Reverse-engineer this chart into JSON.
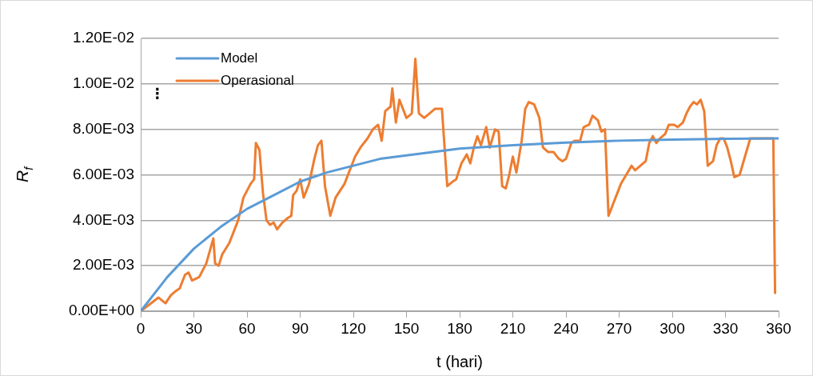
{
  "chart_data": {
    "type": "line",
    "xlabel": "t (hari)",
    "ylabel": "R$_{f}$",
    "xlim": [
      0,
      360
    ],
    "xticks": [
      0,
      30,
      60,
      90,
      120,
      150,
      180,
      210,
      240,
      270,
      300,
      330,
      360
    ],
    "ylim": [
      0,
      0.012
    ],
    "yticks": [
      {
        "value": 0,
        "label": "0.00E+00"
      },
      {
        "value": 0.002,
        "label": "2.00E-03"
      },
      {
        "value": 0.004,
        "label": "4.00E-03"
      },
      {
        "value": 0.006,
        "label": "6.00E-03"
      },
      {
        "value": 0.008,
        "label": "8.00E-03"
      },
      {
        "value": 0.01,
        "label": "1.00E-02"
      },
      {
        "value": 0.012,
        "label": "1.20E-02"
      }
    ],
    "grid": "y",
    "legend": "top left",
    "marker": "none",
    "line_style": "solid",
    "annotations": [
      "⋮"
    ],
    "series": [
      {
        "name": "Model",
        "color": "#5b9bd5",
        "x": [
          0,
          15,
          30,
          45,
          60,
          75,
          90,
          105,
          120,
          135,
          150,
          165,
          180,
          210,
          240,
          270,
          300,
          330,
          360
        ],
        "values": [
          0,
          0.0015,
          0.00275,
          0.0037,
          0.0045,
          0.0051,
          0.0057,
          0.0061,
          0.0064,
          0.0067,
          0.00685,
          0.007,
          0.00715,
          0.0073,
          0.00742,
          0.0075,
          0.00755,
          0.00758,
          0.0076
        ]
      },
      {
        "name": "Operasional",
        "color": "#ed7d31",
        "x": [
          0,
          5,
          10,
          14,
          17,
          20,
          22,
          25,
          27,
          29,
          33,
          37,
          41,
          42,
          44,
          46,
          50,
          55,
          58,
          62,
          64,
          65,
          67,
          69,
          71,
          73,
          75,
          77,
          80,
          83,
          85,
          86,
          88,
          90,
          92,
          95,
          98,
          100,
          102,
          104,
          107,
          110,
          115,
          118,
          121,
          124,
          128,
          131,
          134,
          136,
          138,
          141,
          142,
          144,
          146,
          148,
          150,
          153,
          155,
          157,
          160,
          163,
          166,
          170,
          173,
          176,
          178,
          181,
          184,
          186,
          188,
          190,
          192,
          195,
          197,
          200,
          202,
          204,
          206,
          208,
          210,
          212,
          215,
          217,
          219,
          222,
          225,
          227,
          230,
          233,
          236,
          238,
          240,
          243,
          245,
          248,
          250,
          253,
          255,
          258,
          260,
          262,
          264,
          268,
          271,
          274,
          277,
          279,
          282,
          285,
          287,
          289,
          291,
          293,
          296,
          298,
          301,
          303,
          306,
          308,
          310,
          312,
          314,
          316,
          318,
          320,
          323,
          325,
          327,
          329,
          331,
          333,
          335,
          338,
          344,
          357,
          358
        ],
        "values": [
          0,
          0.0003,
          0.0006,
          0.00035,
          0.0007,
          0.0009,
          0.001,
          0.0016,
          0.0017,
          0.00135,
          0.0015,
          0.0021,
          0.0032,
          0.0021,
          0.002,
          0.0025,
          0.003,
          0.004,
          0.005,
          0.0056,
          0.0058,
          0.0074,
          0.0071,
          0.0052,
          0.004,
          0.0038,
          0.0039,
          0.0036,
          0.0039,
          0.0041,
          0.0042,
          0.0051,
          0.0053,
          0.0058,
          0.005,
          0.0056,
          0.0067,
          0.0073,
          0.0075,
          0.0055,
          0.0042,
          0.005,
          0.0056,
          0.0062,
          0.0068,
          0.0072,
          0.0076,
          0.008,
          0.0082,
          0.0075,
          0.0088,
          0.009,
          0.0098,
          0.0083,
          0.0093,
          0.0089,
          0.0085,
          0.0087,
          0.0111,
          0.0087,
          0.0085,
          0.0087,
          0.0089,
          0.0089,
          0.0055,
          0.0057,
          0.0058,
          0.0065,
          0.0069,
          0.0065,
          0.0072,
          0.0077,
          0.0073,
          0.0081,
          0.0072,
          0.008,
          0.0079,
          0.0055,
          0.0054,
          0.006,
          0.0068,
          0.0061,
          0.0075,
          0.0089,
          0.0092,
          0.0091,
          0.0085,
          0.0072,
          0.007,
          0.007,
          0.0067,
          0.0066,
          0.0067,
          0.0074,
          0.0075,
          0.0075,
          0.0081,
          0.0082,
          0.0086,
          0.0084,
          0.0079,
          0.008,
          0.0042,
          0.005,
          0.0056,
          0.006,
          0.0064,
          0.0062,
          0.0064,
          0.0066,
          0.0074,
          0.0077,
          0.0074,
          0.0076,
          0.0078,
          0.0082,
          0.0082,
          0.0081,
          0.0083,
          0.0087,
          0.009,
          0.0092,
          0.0091,
          0.0093,
          0.0088,
          0.0064,
          0.0066,
          0.0073,
          0.0076,
          0.0076,
          0.0072,
          0.0066,
          0.0059,
          0.006,
          0.0076,
          0.0076,
          0.0008
        ]
      }
    ]
  }
}
